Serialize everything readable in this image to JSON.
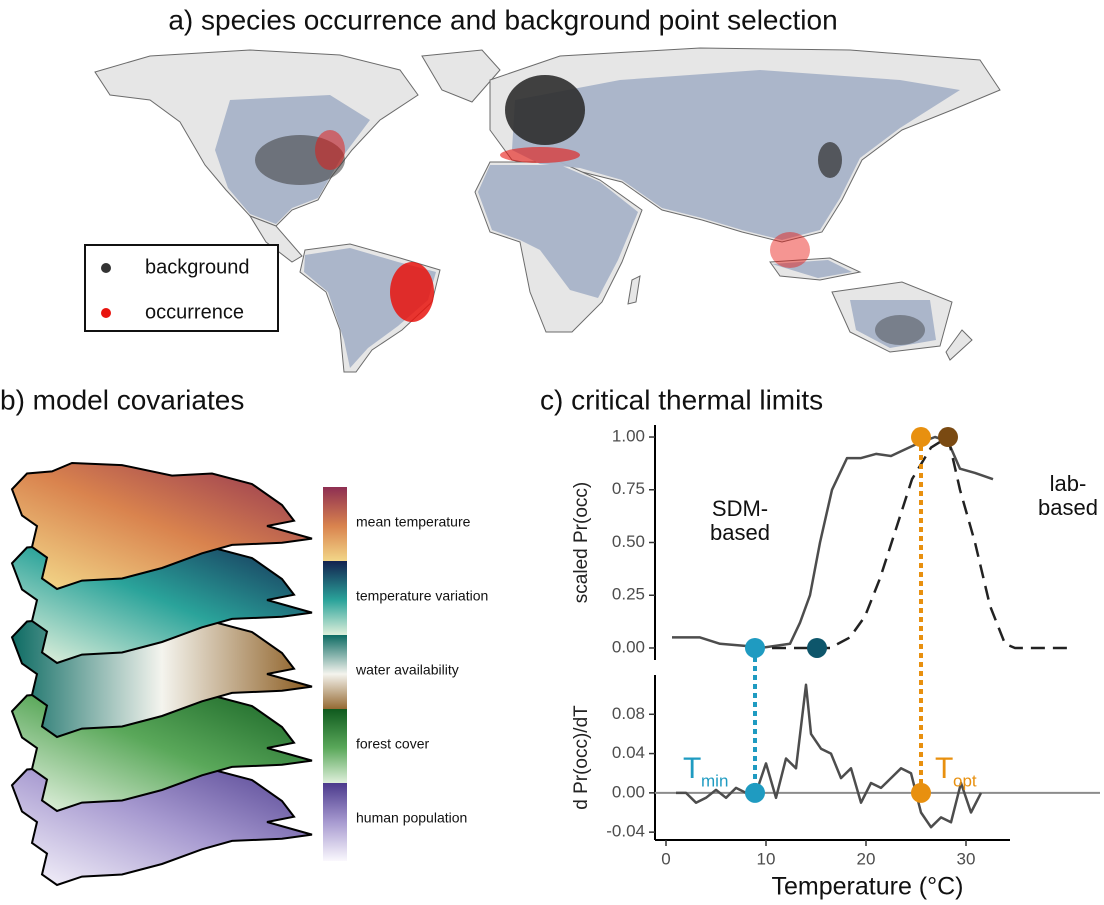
{
  "panel_a": {
    "title": "a) species occurrence and background point selection",
    "legend": [
      {
        "label": "background",
        "color": "#333333"
      },
      {
        "label": "occurrence",
        "color": "#e8140e"
      }
    ]
  },
  "panel_b": {
    "title": "b) model covariates",
    "layers": [
      {
        "label": "mean temperature",
        "colors": [
          "#8e2f52",
          "#d9834e",
          "#f5e08f"
        ]
      },
      {
        "label": "temperature variation",
        "colors": [
          "#13224f",
          "#2aa39a",
          "#f3f8e2"
        ]
      },
      {
        "label": "water availability",
        "colors": [
          "#0d6b63",
          "#f4f4ee",
          "#8a5a1e"
        ]
      },
      {
        "label": "forest cover",
        "colors": [
          "#0f5a1e",
          "#5aa85a",
          "#eef7ea"
        ]
      },
      {
        "label": "human population",
        "colors": [
          "#4b3a8c",
          "#a79ad0",
          "#faf8fd"
        ]
      }
    ]
  },
  "chart_data": [
    {
      "type": "line",
      "title": "c) critical thermal limits",
      "ylabel": "scaled Pr(occ)",
      "xlim": [
        -1.1,
        43.4
      ],
      "ylim": [
        -0.057,
        1.057
      ],
      "yticks": [
        {
          "value": 0,
          "label": "0.00"
        },
        {
          "value": 0.25,
          "label": "0.25"
        },
        {
          "value": 0.5,
          "label": "0.50"
        },
        {
          "value": 0.75,
          "label": "0.75"
        },
        {
          "value": 1,
          "label": "1.00"
        }
      ],
      "series": [
        {
          "name": "SDM-\nbased",
          "color": "#4d4d4d",
          "linestyle": "solid",
          "x": [
            0.6,
            3.4,
            5.4,
            7.9,
            9.4,
            12.4,
            13.4,
            14.4,
            15.4,
            16.6,
            18.1,
            19.5,
            21,
            22.5,
            23.4,
            25.2,
            26.9,
            28.2,
            29.4,
            30.9,
            32.7
          ],
          "values": [
            0.05,
            0.05,
            0.02,
            0.01,
            0,
            0.02,
            0.12,
            0.25,
            0.5,
            0.75,
            0.9,
            0.9,
            0.92,
            0.91,
            0.93,
            0.97,
            1.0,
            0.98,
            0.85,
            0.83,
            0.8
          ]
        },
        {
          "name": "lab-\nbased",
          "color": "#222222",
          "linestyle": "dashed",
          "x": [
            8.4,
            16.4,
            18.4,
            19.9,
            21.4,
            22.9,
            24.6,
            26.5,
            28.2,
            29.4,
            30.9,
            32.4,
            33.9,
            34.9,
            40.4
          ],
          "values": [
            0,
            0,
            0.05,
            0.15,
            0.33,
            0.55,
            0.8,
            0.95,
            1.0,
            0.75,
            0.5,
            0.2,
            0.02,
            0,
            0
          ]
        }
      ],
      "markers": [
        {
          "x": 8.9,
          "y": 0,
          "color": "#1f9bc1"
        },
        {
          "x": 15.1,
          "y": 0,
          "color": "#0e566b"
        },
        {
          "x": 25.5,
          "y": 1,
          "color": "#e8900f"
        },
        {
          "x": 28.2,
          "y": 1,
          "color": "#7a4a12"
        }
      ]
    },
    {
      "type": "line",
      "ylabel": "d Pr(occ)/dT",
      "xlabel": "Temperature (°C)",
      "xlim": [
        -1.1,
        43.4
      ],
      "ylim": [
        -0.048,
        0.12
      ],
      "xticks": [
        0,
        10,
        20,
        30
      ],
      "yticks": [
        {
          "value": -0.04,
          "label": "-0.04"
        },
        {
          "value": 0,
          "label": "0.00"
        },
        {
          "value": 0.04,
          "label": "0.04"
        },
        {
          "value": 0.08,
          "label": "0.08"
        }
      ],
      "series": [
        {
          "color": "#4d4d4d",
          "linestyle": "solid",
          "x": [
            1,
            2,
            3,
            4,
            5,
            6,
            7,
            8,
            9,
            10,
            11,
            12,
            13,
            14,
            14.5,
            15.5,
            16.5,
            17.5,
            18.5,
            19.5,
            20.5,
            21.5,
            22.5,
            23.5,
            24.5,
            25.5,
            26.5,
            27.5,
            28.5,
            29.5,
            30.5,
            31.5
          ],
          "values": [
            0,
            0,
            -0.01,
            -0.005,
            0.003,
            -0.005,
            0.005,
            0,
            0,
            0.03,
            -0.005,
            0.035,
            0.025,
            0.11,
            0.06,
            0.045,
            0.04,
            0.015,
            0.025,
            -0.01,
            0.01,
            0.005,
            0.015,
            0.025,
            0.02,
            -0.02,
            -0.035,
            -0.025,
            -0.03,
            0.01,
            -0.02,
            0
          ]
        }
      ],
      "markers": [
        {
          "x": 8.9,
          "y": 0,
          "color": "#1f9bc1"
        },
        {
          "x": 25.5,
          "y": 0,
          "color": "#e8900f"
        }
      ],
      "annotations": [
        {
          "text": "T",
          "subscript": "min",
          "color": "#1f9bc1"
        },
        {
          "text": "T",
          "subscript": "opt",
          "color": "#e8900f"
        }
      ]
    }
  ]
}
